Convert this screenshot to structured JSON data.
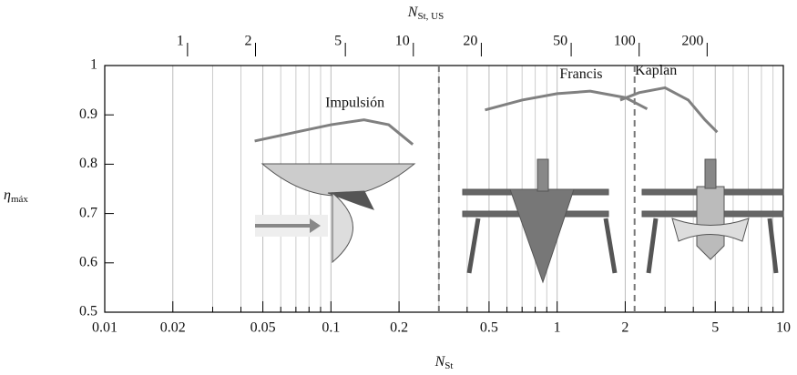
{
  "chart_data": {
    "type": "line",
    "xlabel": {
      "symbol": "N",
      "sub": "St"
    },
    "x2label": {
      "symbol": "N",
      "sub": "St, US"
    },
    "ylabel": {
      "symbol": "η",
      "sub": "máx"
    },
    "xscale": "log",
    "xlim": [
      0.01,
      10
    ],
    "xticks": [
      0.01,
      0.02,
      0.05,
      0.1,
      0.2,
      0.5,
      1,
      2,
      5,
      10
    ],
    "xminorticks": [
      0.03,
      0.04,
      0.06,
      0.07,
      0.08,
      0.09,
      0.3,
      0.4,
      0.6,
      0.7,
      0.8,
      0.9,
      3,
      4,
      6,
      7,
      8,
      9
    ],
    "x2lim": [
      0.43,
      435
    ],
    "x2ticks": [
      1,
      2,
      5,
      10,
      20,
      50,
      100,
      200
    ],
    "ylim": [
      0.5,
      1
    ],
    "yticks": [
      0.5,
      0.6,
      0.7,
      0.8,
      0.9,
      1
    ],
    "grid": true,
    "vlines": [
      0.3,
      2.2
    ],
    "series": [
      {
        "name": "Impulsión",
        "color": "#808080",
        "x": [
          0.046,
          0.07,
          0.1,
          0.14,
          0.18,
          0.23
        ],
        "values": [
          0.847,
          0.865,
          0.88,
          0.89,
          0.88,
          0.84
        ]
      },
      {
        "name": "Francis",
        "color": "#808080",
        "x": [
          0.48,
          0.7,
          1,
          1.4,
          2,
          2.5
        ],
        "values": [
          0.91,
          0.93,
          0.943,
          0.948,
          0.935,
          0.912
        ]
      },
      {
        "name": "Kaplan",
        "color": "#808080",
        "x": [
          1.9,
          2.3,
          3,
          3.8,
          4.5,
          5.1
        ],
        "values": [
          0.93,
          0.945,
          0.955,
          0.93,
          0.89,
          0.865
        ]
      }
    ]
  }
}
